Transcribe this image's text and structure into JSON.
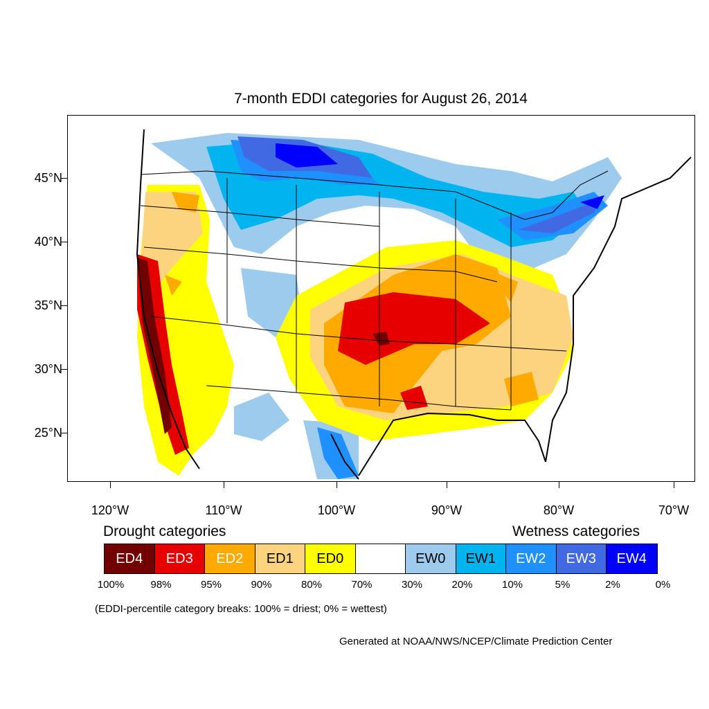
{
  "title": "7-month EDDI categories for August 26, 2014",
  "axes": {
    "lat_labels": [
      "45°N",
      "40°N",
      "35°N",
      "30°N",
      "25°N"
    ],
    "lon_labels": [
      "120°W",
      "110°W",
      "100°W",
      "90°W",
      "80°W",
      "70°W"
    ]
  },
  "legend": {
    "drought_heading": "Drought categories",
    "wetness_heading": "Wetness categories",
    "categories": [
      {
        "label": "ED4",
        "color": "#730000",
        "text_color": "#ffffff"
      },
      {
        "label": "ED3",
        "color": "#e60000",
        "text_color": "#ffffff"
      },
      {
        "label": "ED2",
        "color": "#ffaa00",
        "text_color": "#ffffff"
      },
      {
        "label": "ED1",
        "color": "#fcd37f",
        "text_color": "#000000"
      },
      {
        "label": "ED0",
        "color": "#ffff00",
        "text_color": "#000000"
      },
      {
        "label": "",
        "color": "#ffffff",
        "text_color": "#000000"
      },
      {
        "label": "EW0",
        "color": "#9ccbee",
        "text_color": "#000000"
      },
      {
        "label": "EW1",
        "color": "#00b4f0",
        "text_color": "#000000"
      },
      {
        "label": "EW2",
        "color": "#1e90ff",
        "text_color": "#ffffff"
      },
      {
        "label": "EW3",
        "color": "#4169e1",
        "text_color": "#ffffff"
      },
      {
        "label": "EW4",
        "color": "#0000ff",
        "text_color": "#ffffff"
      }
    ],
    "breaks": [
      "100%",
      "98%",
      "95%",
      "90%",
      "80%",
      "70%",
      "30%",
      "20%",
      "10%",
      "5%",
      "2%",
      "0%"
    ]
  },
  "note": "(EDDI-percentile category breaks: 100% = driest; 0% = wettest)",
  "credit": "Generated at NOAA/NWS/NCEP/Climate Prediction Center"
}
